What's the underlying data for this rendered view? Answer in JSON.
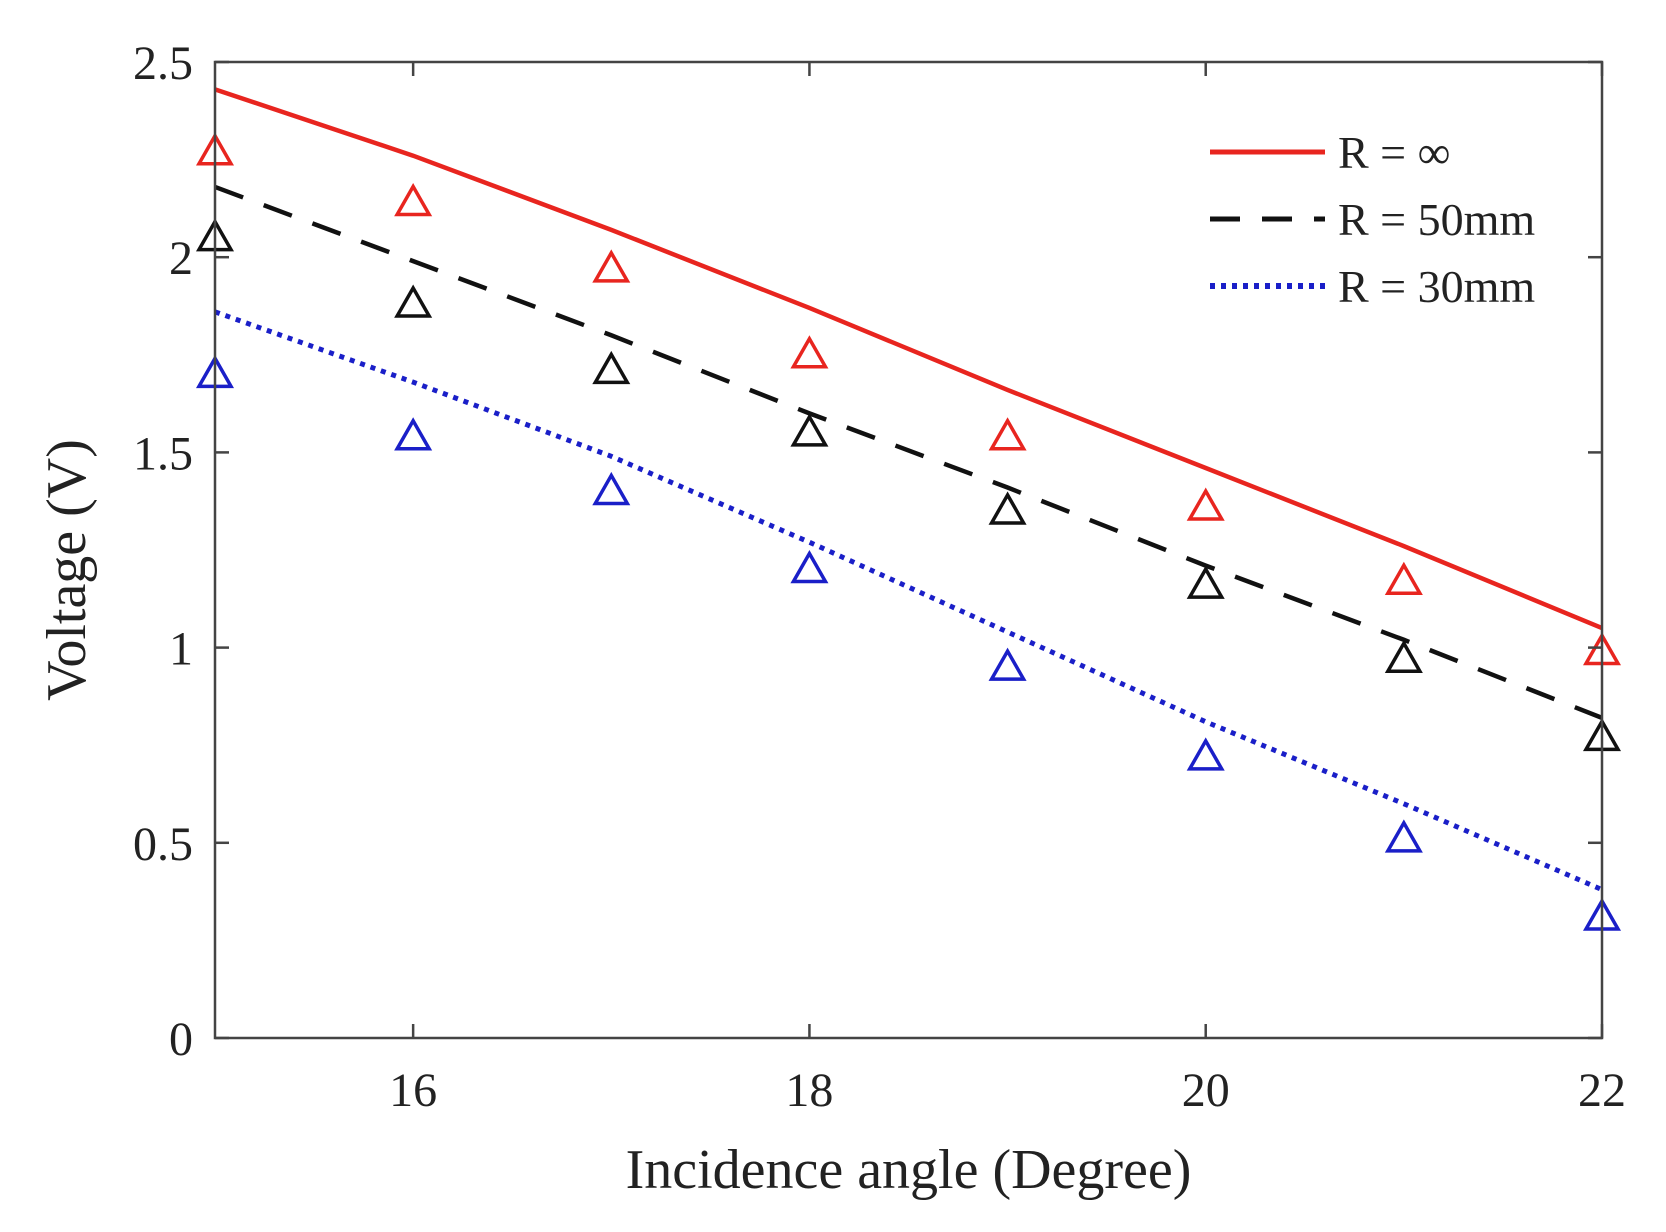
{
  "chart_data": {
    "type": "line",
    "title": "",
    "xlabel": "Incidence angle (Degree)",
    "ylabel": "Voltage (V)",
    "xlim": [
      15,
      22
    ],
    "ylim": [
      0,
      2.5
    ],
    "xticks": [
      16,
      18,
      20,
      22
    ],
    "xtick_labels": [
      "16",
      "18",
      "20",
      "22"
    ],
    "yticks": [
      0,
      0.5,
      1,
      1.5,
      2,
      2.5
    ],
    "ytick_labels": [
      "0",
      "0.5",
      "1",
      "1.5",
      "2",
      "2.5"
    ],
    "grid": false,
    "legend_position": "top-right",
    "series": [
      {
        "name": "R = ∞",
        "color": "#e8251f",
        "line_style": "solid",
        "line": {
          "x": [
            15,
            16,
            17,
            18,
            19,
            20,
            21,
            22
          ],
          "y": [
            2.43,
            2.26,
            2.07,
            1.87,
            1.66,
            1.46,
            1.26,
            1.05
          ]
        },
        "markers": {
          "symbol": "triangle-open",
          "x": [
            15,
            16,
            17,
            18,
            19,
            20,
            21,
            22
          ],
          "y": [
            2.27,
            2.14,
            1.97,
            1.75,
            1.54,
            1.36,
            1.17,
            0.99
          ]
        }
      },
      {
        "name": "R = 50mm",
        "color": "#111111",
        "line_style": "dashed",
        "line": {
          "x": [
            15,
            16,
            17,
            18,
            19,
            20,
            21,
            22
          ],
          "y": [
            2.18,
            1.99,
            1.8,
            1.6,
            1.41,
            1.21,
            1.02,
            0.82
          ]
        },
        "markers": {
          "symbol": "triangle-open",
          "x": [
            15,
            16,
            17,
            18,
            19,
            20,
            21,
            22
          ],
          "y": [
            2.05,
            1.88,
            1.71,
            1.55,
            1.35,
            1.16,
            0.97,
            0.77
          ]
        }
      },
      {
        "name": "R = 30mm",
        "color": "#1a1fc8",
        "line_style": "dotted",
        "line": {
          "x": [
            15,
            16,
            17,
            18,
            19,
            20,
            21,
            22
          ],
          "y": [
            1.86,
            1.68,
            1.49,
            1.27,
            1.04,
            0.81,
            0.6,
            0.38
          ]
        },
        "markers": {
          "symbol": "triangle-open",
          "x": [
            15,
            16,
            17,
            18,
            19,
            20,
            21,
            22
          ],
          "y": [
            1.7,
            1.54,
            1.4,
            1.2,
            0.95,
            0.72,
            0.51,
            0.31
          ]
        }
      }
    ]
  }
}
